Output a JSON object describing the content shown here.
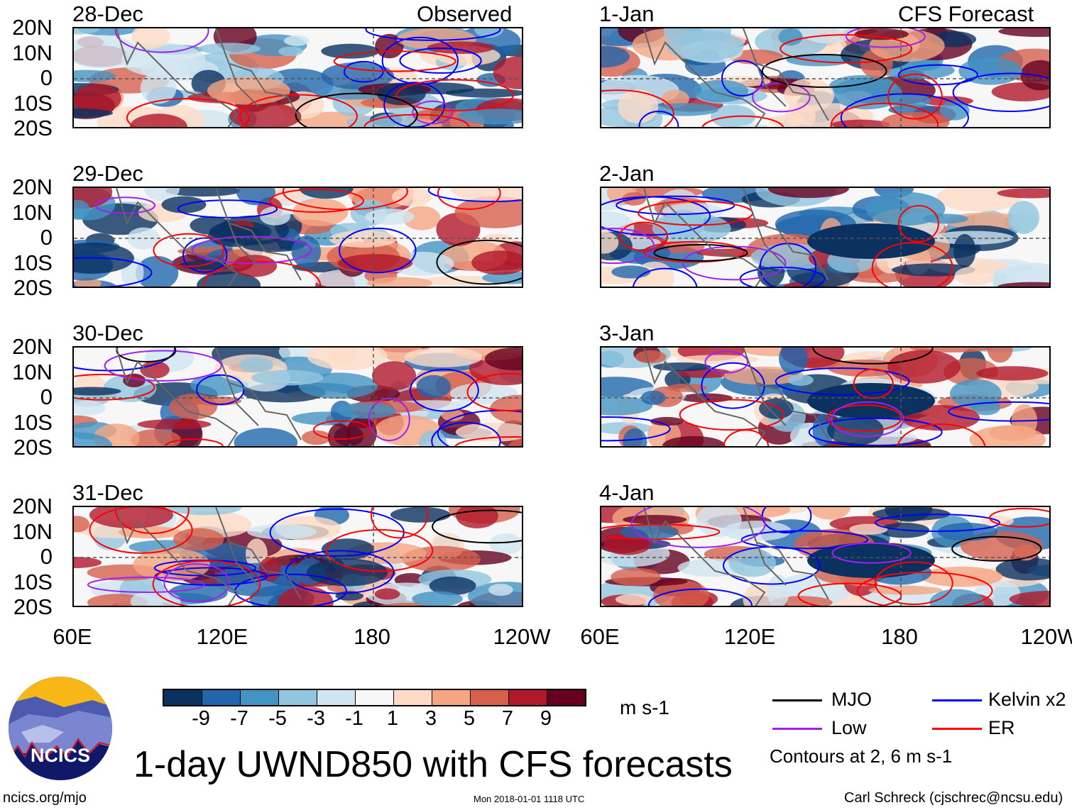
{
  "title": "1-day UWND850 with CFS forecasts",
  "observed_label": "Observed",
  "forecast_label": "CFS Forecast",
  "panels_left": [
    "28-Dec",
    "29-Dec",
    "30-Dec",
    "31-Dec"
  ],
  "panels_right": [
    "1-Jan",
    "2-Jan",
    "3-Jan",
    "4-Jan"
  ],
  "lat_labels": [
    "20N",
    "10N",
    "0",
    "10S",
    "20S"
  ],
  "lon_labels": [
    "60E",
    "120E",
    "180",
    "120W"
  ],
  "colorbar": {
    "labels": [
      "-9",
      "-7",
      "-5",
      "-3",
      "-1",
      "1",
      "3",
      "5",
      "7",
      "9"
    ],
    "colors": [
      "#0a3160",
      "#2166ac",
      "#4393c3",
      "#92c5de",
      "#d1e5f0",
      "#f7f7f7",
      "#fddbc7",
      "#f4a582",
      "#d6604d",
      "#b2182b",
      "#67001f"
    ],
    "units": "m s-1"
  },
  "legend": {
    "items": [
      {
        "label": "MJO",
        "color": "#000000"
      },
      {
        "label": "Kelvin x2",
        "color": "#0000ff"
      },
      {
        "label": "Low",
        "color": "#a020f0"
      },
      {
        "label": "ER",
        "color": "#ff0000"
      }
    ],
    "note": "Contours at 2, 6 m s-1"
  },
  "logo_text": "NCICS",
  "footer": {
    "url": "ncics.org/mjo",
    "timestamp": "Mon 2018-01-01 1118 UTC",
    "credit": "Carl Schreck (cjschrec@ncsu.edu)"
  }
}
